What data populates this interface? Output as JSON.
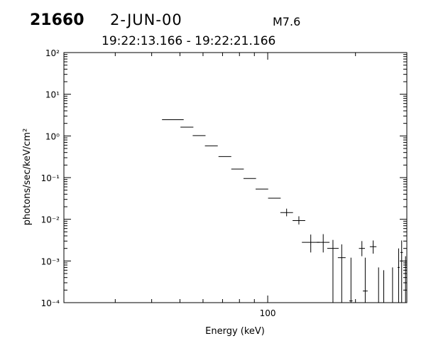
{
  "header": {
    "flare_number": "21660",
    "date": "2-JUN-00",
    "goes_class": "M7.6",
    "time_range": "19:22:13.166 - 19:22:21.166"
  },
  "chart_data": {
    "type": "scatter",
    "xlabel": "Energy (keV)",
    "ylabel": "photons/sec/keV/cm²",
    "x_scale": "log",
    "y_scale": "log",
    "xlim": [
      20,
      300
    ],
    "ylim": [
      0.0001,
      100
    ],
    "x_tick_labels": [
      "100"
    ],
    "y_tick_labels": [
      "10⁻⁴",
      "10⁻³",
      "10⁻²",
      "10⁻¹",
      "10⁰",
      "10¹",
      "10²"
    ],
    "grid": false,
    "points": [
      {
        "x": 47.2,
        "y": 2.45,
        "x_lo": 43.4,
        "x_hi": 51.5
      },
      {
        "x": 52.9,
        "y": 1.62,
        "x_lo": 50.2,
        "x_hi": 55.6
      },
      {
        "x": 58.2,
        "y": 1.02,
        "x_lo": 55.3,
        "x_hi": 61.2
      },
      {
        "x": 64.0,
        "y": 0.58,
        "x_lo": 60.9,
        "x_hi": 67.4
      },
      {
        "x": 71.3,
        "y": 0.32,
        "x_lo": 67.8,
        "x_hi": 75.0
      },
      {
        "x": 78.8,
        "y": 0.16,
        "x_lo": 75.0,
        "x_hi": 82.8
      },
      {
        "x": 86.8,
        "y": 0.095,
        "x_lo": 82.6,
        "x_hi": 91.2
      },
      {
        "x": 95.5,
        "y": 0.053,
        "x_lo": 90.9,
        "x_hi": 100.4
      },
      {
        "x": 105.4,
        "y": 0.032,
        "x_lo": 100.3,
        "x_hi": 110.8
      },
      {
        "x": 116.1,
        "y": 0.0145,
        "x_lo": 110.5,
        "x_hi": 122.1,
        "y_lo": 0.0118,
        "y_hi": 0.018
      },
      {
        "x": 127.9,
        "y": 0.0093,
        "x_lo": 121.7,
        "x_hi": 134.5,
        "y_lo": 0.0075,
        "y_hi": 0.0118
      },
      {
        "x": 140.5,
        "y": 0.0028,
        "x_lo": 131.0,
        "x_hi": 150.7,
        "y_lo": 0.0016,
        "y_hi": 0.0043
      },
      {
        "x": 155.0,
        "y": 0.0028,
        "x_lo": 147.4,
        "x_hi": 162.9,
        "y_lo": 0.0016,
        "y_hi": 0.0044
      },
      {
        "x": 167.4,
        "y": 0.002,
        "x_lo": 160.0,
        "x_hi": 175.1,
        "y_lo": 0.0001,
        "y_hi": 0.0032
      },
      {
        "x": 179.4,
        "y": 0.0012,
        "x_lo": 174.0,
        "x_hi": 185.0,
        "y_lo": 0.0001,
        "y_hi": 0.0025
      },
      {
        "x": 193.0,
        "y": 0.00011,
        "x_lo": 190.5,
        "x_hi": 195.5,
        "y_lo": 0.0001,
        "y_hi": 0.0012
      },
      {
        "x": 210.4,
        "y": 0.002,
        "x_lo": 205.5,
        "x_hi": 215.5,
        "y_lo": 0.0013,
        "y_hi": 0.003
      },
      {
        "x": 216.0,
        "y": 0.00019,
        "x_lo": 212.0,
        "x_hi": 220.2,
        "y_lo": 0.0001,
        "y_hi": 0.0012
      },
      {
        "x": 230.0,
        "y": 0.0022,
        "x_lo": 224.0,
        "x_hi": 236.0,
        "y_lo": 0.0015,
        "y_hi": 0.0031
      },
      {
        "x": 240.0,
        "y": null,
        "y_lo": 0.0001,
        "y_hi": 0.0007
      },
      {
        "x": 250.0,
        "y": null,
        "y_lo": 0.0001,
        "y_hi": 0.0006
      },
      {
        "x": 268.0,
        "y": null,
        "y_lo": 0.0001,
        "y_hi": 0.0007
      },
      {
        "x": 281.2,
        "y": 0.0007,
        "x_lo": 279.0,
        "x_hi": 283.5,
        "y_lo": 0.0001,
        "y_hi": 0.002
      },
      {
        "x": 288.0,
        "y": 0.0016,
        "x_lo": 285.0,
        "x_hi": 291.0,
        "y_lo": 0.0001,
        "y_hi": 0.0031
      },
      {
        "x": 297.0,
        "y": null,
        "y_lo": 0.0001,
        "y_hi": 0.0013
      }
    ]
  }
}
